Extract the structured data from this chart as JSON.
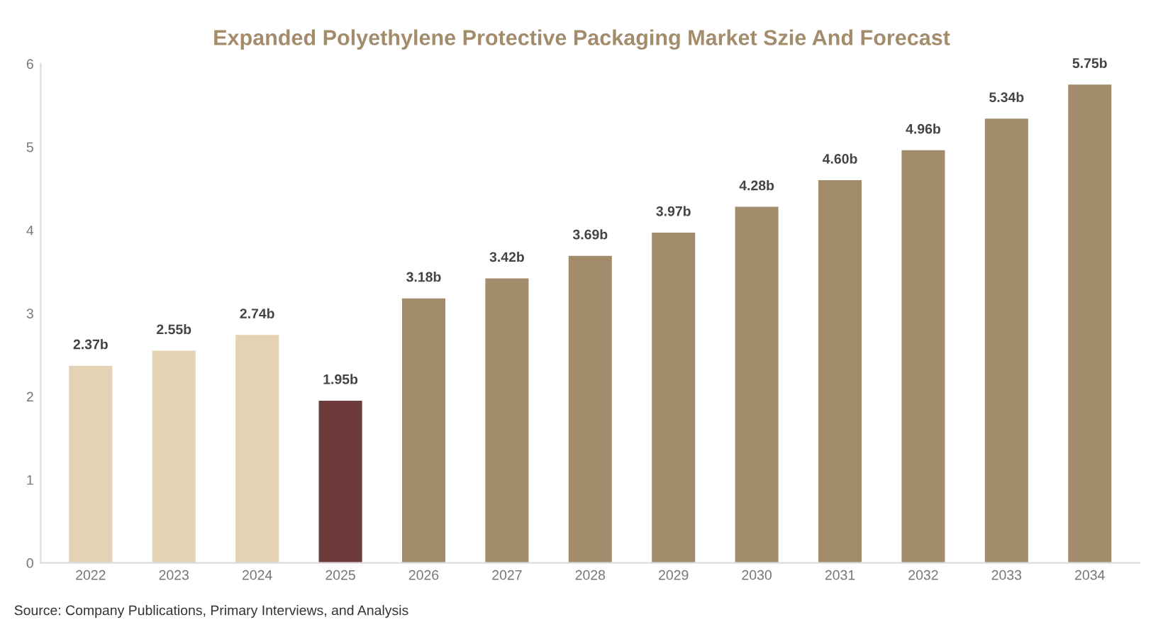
{
  "chart_data": {
    "type": "bar",
    "title": "Expanded Polyethylene Protective Packaging Market Szie And Forecast",
    "categories": [
      "2022",
      "2023",
      "2024",
      "2025",
      "2026",
      "2027",
      "2028",
      "2029",
      "2030",
      "2031",
      "2032",
      "2033",
      "2034"
    ],
    "values": [
      2.37,
      2.55,
      2.74,
      1.95,
      3.18,
      3.42,
      3.69,
      3.97,
      4.28,
      4.6,
      4.96,
      5.34,
      5.75
    ],
    "colors": [
      "#e3d2b4",
      "#e3d2b4",
      "#e3d2b4",
      "#6e3b3b",
      "#a38c6c",
      "#a38c6c",
      "#a38c6c",
      "#a38c6c",
      "#a38c6c",
      "#a38c6c",
      "#a38c6c",
      "#a38c6c",
      "#a38c6c"
    ],
    "value_labels": [
      "2.37b",
      "2.55b",
      "2.74b",
      "1.95b",
      "3.18b",
      "3.42b",
      "3.69b",
      "3.97b",
      "4.28b",
      "4.60b",
      "4.96b",
      "5.34b",
      "5.75b"
    ],
    "ylim": [
      0,
      6
    ],
    "yticks": [
      0,
      1,
      2,
      3,
      4,
      5,
      6
    ],
    "grid": false,
    "annotations": [
      "Source: Company Publications, Primary Interviews, and Analysis"
    ]
  }
}
